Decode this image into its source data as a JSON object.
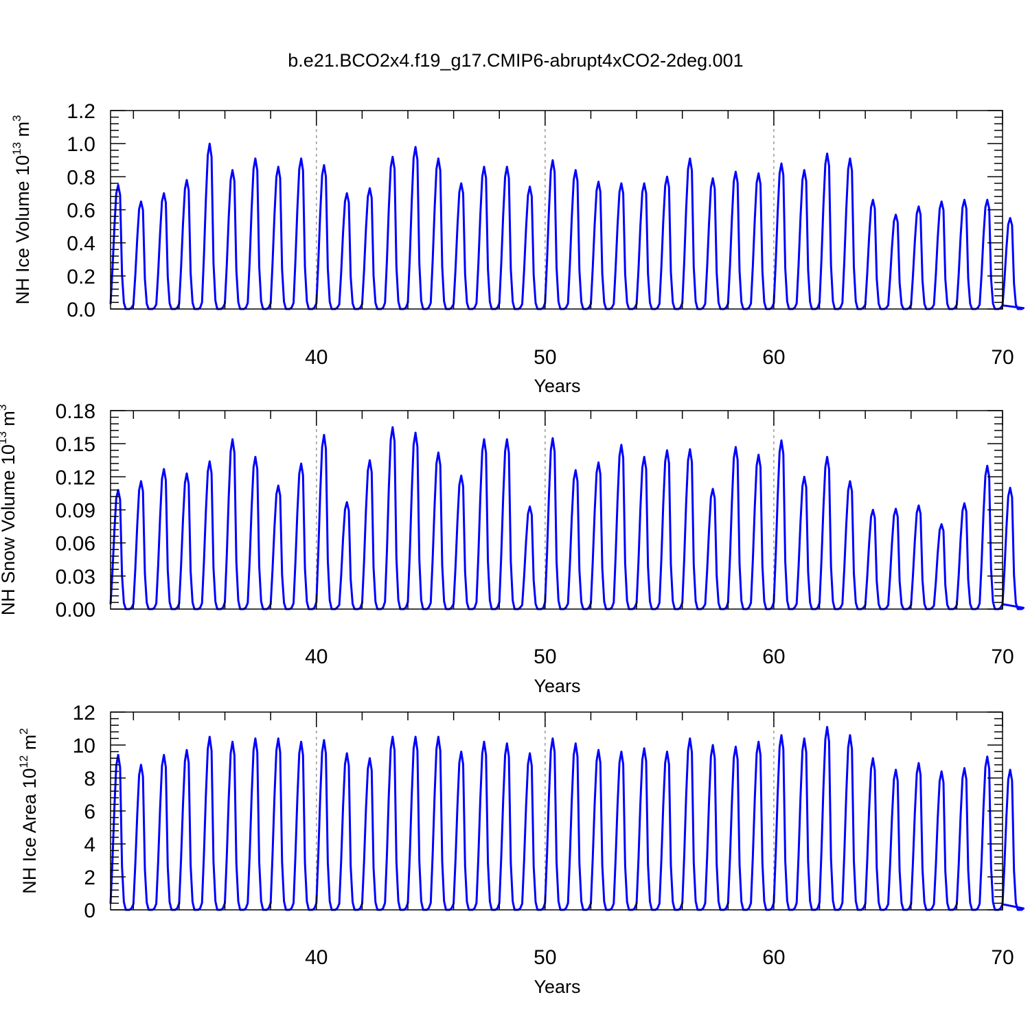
{
  "title": "b.e21.BCO2x4.f19_g17.CMIP6-abrupt4xCO2-2deg.001",
  "colors": {
    "series": "#0000ff",
    "axis": "#000000",
    "gridline": "#999999"
  },
  "chart_data": [
    {
      "type": "line",
      "xlabel": "Years",
      "ylabel_main": "NH Ice Volume 10",
      "ylabel_sup": "13",
      "ylabel_unit": " m",
      "ylabel_unit_sup": "3",
      "xlim": [
        31,
        70
      ],
      "ylim": [
        0,
        1.2
      ],
      "x_ticks": [
        "40",
        "50",
        "60",
        "70"
      ],
      "y_ticks": [
        "0.0",
        "0.2",
        "0.4",
        "0.6",
        "0.8",
        "1.0",
        "1.2"
      ],
      "vertical_reference_lines": [
        40,
        50,
        60
      ],
      "annual_maxima": [
        0.75,
        0.65,
        0.7,
        0.78,
        1.0,
        0.84,
        0.91,
        0.86,
        0.91,
        0.87,
        0.7,
        0.73,
        0.92,
        0.98,
        0.91,
        0.76,
        0.86,
        0.86,
        0.74,
        0.9,
        0.84,
        0.77,
        0.76,
        0.76,
        0.8,
        0.91,
        0.79,
        0.83,
        0.82,
        0.88,
        0.84,
        0.94,
        0.91,
        0.66,
        0.57,
        0.62,
        0.65,
        0.66,
        0.66,
        0.55
      ],
      "annual_minimum": 0.0
    },
    {
      "type": "line",
      "xlabel": "Years",
      "ylabel_main": "NH Snow Volume 10",
      "ylabel_sup": "13",
      "ylabel_unit": " m",
      "ylabel_unit_sup": "3",
      "xlim": [
        31,
        70
      ],
      "ylim": [
        0,
        0.18
      ],
      "x_ticks": [
        "40",
        "50",
        "60",
        "70"
      ],
      "y_ticks": [
        "0.00",
        "0.03",
        "0.06",
        "0.09",
        "0.12",
        "0.15",
        "0.18"
      ],
      "vertical_reference_lines": [
        40,
        50,
        60
      ],
      "annual_maxima": [
        0.108,
        0.116,
        0.127,
        0.123,
        0.134,
        0.154,
        0.138,
        0.112,
        0.132,
        0.158,
        0.097,
        0.135,
        0.165,
        0.16,
        0.142,
        0.121,
        0.154,
        0.154,
        0.093,
        0.155,
        0.126,
        0.133,
        0.149,
        0.138,
        0.144,
        0.145,
        0.109,
        0.147,
        0.14,
        0.153,
        0.12,
        0.138,
        0.116,
        0.09,
        0.091,
        0.094,
        0.077,
        0.096,
        0.13,
        0.11
      ],
      "annual_minimum": 0.0
    },
    {
      "type": "line",
      "xlabel": "Years",
      "ylabel_main": "NH Ice Area 10",
      "ylabel_sup": "12",
      "ylabel_unit": " m",
      "ylabel_unit_sup": "2",
      "xlim": [
        31,
        70
      ],
      "ylim": [
        0,
        12
      ],
      "x_ticks": [
        "40",
        "50",
        "60",
        "70"
      ],
      "y_ticks": [
        "0",
        "2",
        "4",
        "6",
        "8",
        "10",
        "12"
      ],
      "vertical_reference_lines": [
        40,
        50,
        60
      ],
      "annual_maxima": [
        9.4,
        8.8,
        9.4,
        9.7,
        10.5,
        10.2,
        10.4,
        10.4,
        10.2,
        10.3,
        9.5,
        9.2,
        10.5,
        10.5,
        10.5,
        9.6,
        10.2,
        10.1,
        9.5,
        10.4,
        10.1,
        9.7,
        9.6,
        9.8,
        9.6,
        10.4,
        10.0,
        9.9,
        10.2,
        10.6,
        10.4,
        11.1,
        10.6,
        9.2,
        8.5,
        8.9,
        8.4,
        8.6,
        9.3,
        8.5
      ],
      "annual_minimum": 0.0
    }
  ]
}
